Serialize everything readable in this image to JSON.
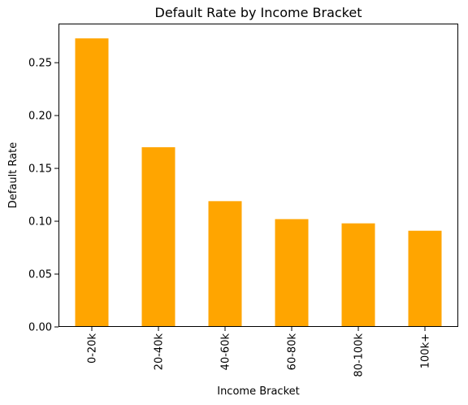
{
  "chart_data": {
    "type": "bar",
    "title": "Default Rate by Income Bracket",
    "xlabel": "Income Bracket",
    "ylabel": "Default Rate",
    "categories": [
      "0-20k",
      "20-40k",
      "40-60k",
      "60-80k",
      "80-100k",
      "100k+"
    ],
    "values": [
      0.273,
      0.17,
      0.119,
      0.102,
      0.098,
      0.091
    ],
    "ylim": [
      0,
      0.287
    ],
    "yticks": [
      0.0,
      0.05,
      0.1,
      0.15,
      0.2,
      0.25
    ],
    "ytick_labels": [
      "0.00",
      "0.05",
      "0.10",
      "0.15",
      "0.20",
      "0.25"
    ],
    "bar_color": "#ffa500",
    "grid": false,
    "legend": "none"
  }
}
